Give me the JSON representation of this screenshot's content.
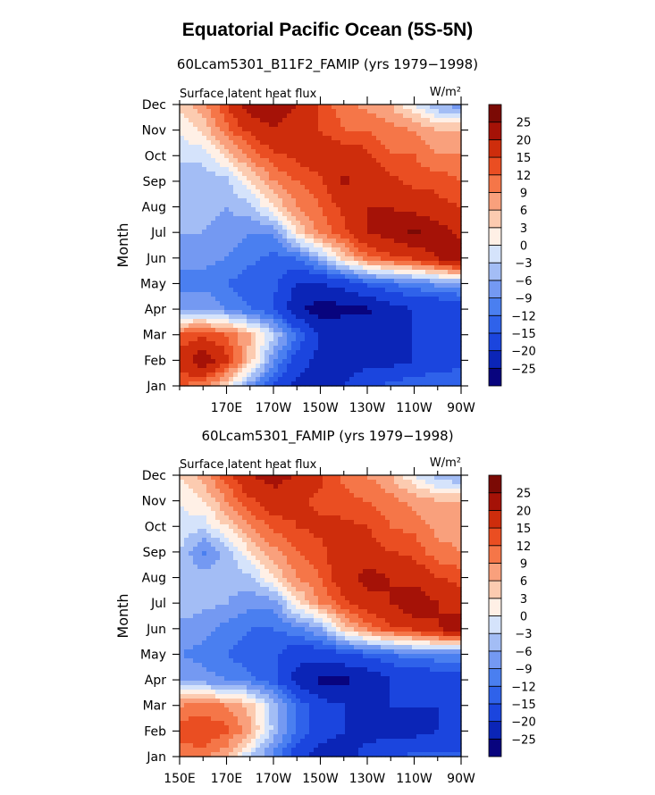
{
  "title": "Equatorial Pacific Ocean (5S-5N)",
  "chart_data": [
    {
      "type": "heatmap",
      "title": "60Lcam5301_B11F2_FAMIP (yrs 1979−1998)",
      "left_label": "Surface latent heat flux",
      "right_label": "W/m²",
      "ylabel": "Month",
      "xlabel": "",
      "x_ticks": [
        "170E",
        "170W",
        "150W",
        "130W",
        "110W",
        "90W"
      ],
      "x_tick_lon": [
        170,
        190,
        210,
        230,
        250,
        270
      ],
      "xlim_lon": [
        150,
        270
      ],
      "y_ticks": [
        "Jan",
        "Feb",
        "Mar",
        "Apr",
        "May",
        "Jun",
        "Jul",
        "Aug",
        "Sep",
        "Oct",
        "Nov",
        "Dec"
      ],
      "levels": [
        -25,
        -20,
        -15,
        -12,
        -9,
        -6,
        -3,
        0,
        3,
        6,
        9,
        12,
        15,
        20,
        25
      ],
      "colors": [
        "#08047e",
        "#0b25b7",
        "#1b45de",
        "#2f62ea",
        "#4a7ff0",
        "#7499f2",
        "#a3bdf5",
        "#d5e3fb",
        "#fff0e6",
        "#fccbb0",
        "#f9a07c",
        "#f57648",
        "#ea4e22",
        "#ce2d0c",
        "#a51207",
        "#7b0a05"
      ],
      "grid_lon": [
        150,
        160,
        170,
        180,
        190,
        200,
        210,
        220,
        230,
        240,
        250,
        260,
        270
      ],
      "grid_month": [
        "Jan",
        "Feb",
        "Mar",
        "Apr",
        "May",
        "Jun",
        "Jul",
        "Aug",
        "Sep",
        "Oct",
        "Nov",
        "Dec"
      ],
      "values": [
        [
          12,
          10,
          3,
          -8,
          -16,
          -22,
          -24,
          -20,
          -16,
          -14,
          -12,
          -12,
          -12
        ],
        [
          17,
          24,
          16,
          5,
          -8,
          -17,
          -22,
          -22,
          -22,
          -22,
          -20,
          -18,
          -16
        ],
        [
          12,
          14,
          12,
          6,
          -3,
          -12,
          -20,
          -22,
          -22,
          -22,
          -20,
          -17,
          -16
        ],
        [
          -6,
          -6,
          -9,
          -12,
          -15,
          -24,
          -28,
          -26,
          -26,
          -22,
          -20,
          -20,
          -17
        ],
        [
          -10,
          -10,
          -12,
          -14,
          -14,
          -20,
          -20,
          -18,
          -14,
          -12,
          -10,
          -8,
          -8
        ],
        [
          -8,
          -8,
          -9,
          -11,
          -13,
          -12,
          -5,
          4,
          11,
          14,
          16,
          20,
          26
        ],
        [
          -6,
          -6,
          -7,
          -9,
          -9,
          3,
          10,
          14,
          20,
          22,
          26,
          23,
          18
        ],
        [
          -4,
          -5,
          -6,
          -4,
          3,
          9,
          12,
          16,
          20,
          20,
          18,
          16,
          15
        ],
        [
          -5,
          -5,
          -4,
          3,
          9,
          12,
          14,
          21,
          18,
          16,
          14,
          14,
          12
        ],
        [
          -2,
          -2,
          4,
          10,
          14,
          16,
          18,
          18,
          16,
          12,
          12,
          9,
          9
        ],
        [
          0,
          4,
          11,
          16,
          20,
          16,
          15,
          12,
          12,
          10,
          9,
          6,
          6
        ],
        [
          4,
          8,
          15,
          23,
          24,
          20,
          14,
          10,
          8,
          6,
          0,
          -6,
          -8
        ]
      ]
    },
    {
      "type": "heatmap",
      "title": "60Lcam5301_FAMIP (yrs 1979−1998)",
      "left_label": "Surface latent heat flux",
      "right_label": "W/m²",
      "ylabel": "Month",
      "xlabel": "",
      "x_ticks": [
        "150E",
        "170E",
        "170W",
        "150W",
        "130W",
        "110W",
        "90W"
      ],
      "x_tick_lon": [
        150,
        170,
        190,
        210,
        230,
        250,
        270
      ],
      "xlim_lon": [
        150,
        270
      ],
      "y_ticks": [
        "Jan",
        "Feb",
        "Mar",
        "Apr",
        "May",
        "Jun",
        "Jul",
        "Aug",
        "Sep",
        "Oct",
        "Nov",
        "Dec"
      ],
      "levels": [
        -25,
        -20,
        -15,
        -12,
        -9,
        -6,
        -3,
        0,
        3,
        6,
        9,
        12,
        15,
        20,
        25
      ],
      "colors": [
        "#08047e",
        "#0b25b7",
        "#1b45de",
        "#2f62ea",
        "#4a7ff0",
        "#7499f2",
        "#a3bdf5",
        "#d5e3fb",
        "#fff0e6",
        "#fccbb0",
        "#f9a07c",
        "#f57648",
        "#ea4e22",
        "#ce2d0c",
        "#a51207",
        "#7b0a05"
      ],
      "grid_lon": [
        150,
        160,
        170,
        180,
        190,
        200,
        210,
        220,
        230,
        240,
        250,
        260,
        270
      ],
      "grid_month": [
        "Jan",
        "Feb",
        "Mar",
        "Apr",
        "May",
        "Jun",
        "Jul",
        "Aug",
        "Sep",
        "Oct",
        "Nov",
        "Dec"
      ],
      "values": [
        [
          10,
          10,
          6,
          -3,
          -10,
          -18,
          -22,
          -22,
          -18,
          -15,
          -14,
          -14,
          -14
        ],
        [
          14,
          15,
          13,
          7,
          -4,
          -12,
          -18,
          -20,
          -22,
          -22,
          -22,
          -20,
          -18
        ],
        [
          9,
          10,
          9,
          5,
          -4,
          -12,
          -18,
          -20,
          -20,
          -20,
          -20,
          -20,
          -20
        ],
        [
          -6,
          -8,
          -9,
          -11,
          -14,
          -22,
          -26,
          -26,
          -24,
          -20,
          -19,
          -18,
          -18
        ],
        [
          -9,
          -10,
          -12,
          -14,
          -14,
          -18,
          -18,
          -16,
          -14,
          -12,
          -10,
          -10,
          -10
        ],
        [
          -7,
          -8,
          -10,
          -12,
          -12,
          -10,
          -6,
          4,
          10,
          14,
          16,
          20,
          24
        ],
        [
          -4,
          -5,
          -6,
          -8,
          -8,
          2,
          9,
          14,
          18,
          20,
          24,
          20,
          16
        ],
        [
          -4,
          -4,
          -5,
          -4,
          3,
          9,
          12,
          18,
          22,
          20,
          18,
          15,
          14
        ],
        [
          -3,
          -10,
          -5,
          3,
          8,
          12,
          14,
          18,
          17,
          15,
          14,
          10,
          9
        ],
        [
          -1,
          -2,
          3,
          9,
          13,
          15,
          16,
          16,
          15,
          12,
          11,
          8,
          8
        ],
        [
          0,
          3,
          9,
          14,
          18,
          16,
          14,
          13,
          12,
          10,
          8,
          6,
          6
        ],
        [
          3,
          7,
          14,
          20,
          22,
          20,
          16,
          11,
          9,
          6,
          0,
          -5,
          -7
        ]
      ]
    }
  ]
}
